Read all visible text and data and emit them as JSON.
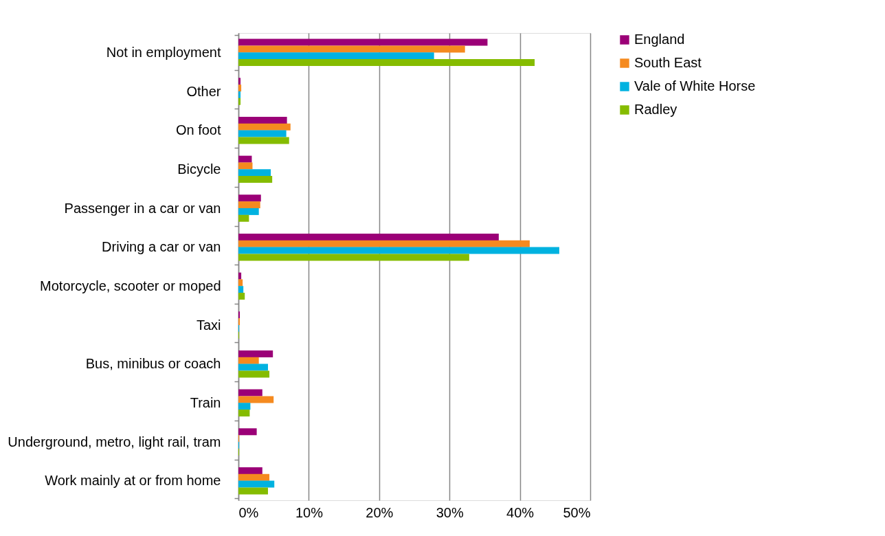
{
  "chart_data": {
    "type": "bar",
    "orientation": "horizontal",
    "categories": [
      "Not in employment",
      "Other",
      "On foot",
      "Bicycle",
      "Passenger in a car or van",
      "Driving a car or van",
      "Motorcycle, scooter or moped",
      "Taxi",
      "Bus, minibus or coach",
      "Train",
      "Underground, metro, light rail, tram",
      "Work mainly at or from home"
    ],
    "series": [
      {
        "name": "England",
        "color": "#9b0077",
        "values": [
          35.4,
          0.3,
          6.9,
          1.9,
          3.2,
          37.0,
          0.4,
          0.2,
          4.9,
          3.4,
          2.6,
          3.4
        ]
      },
      {
        "name": "South East",
        "color": "#f58a1f",
        "values": [
          32.2,
          0.4,
          7.4,
          2.0,
          3.1,
          41.4,
          0.6,
          0.2,
          2.9,
          5.0,
          0.1,
          4.4
        ]
      },
      {
        "name": "Vale of White Horse",
        "color": "#00b2e0",
        "values": [
          27.8,
          0.3,
          6.8,
          4.6,
          2.9,
          45.6,
          0.7,
          0.1,
          4.2,
          1.7,
          0.1,
          5.1
        ]
      },
      {
        "name": "Radley",
        "color": "#85bc00",
        "values": [
          42.1,
          0.3,
          7.2,
          4.8,
          1.5,
          32.8,
          0.9,
          0.1,
          4.4,
          1.6,
          0.1,
          4.2
        ]
      }
    ],
    "xlim": [
      0,
      50
    ],
    "xticks": [
      {
        "value": 0,
        "label": "0%"
      },
      {
        "value": 10,
        "label": "10%"
      },
      {
        "value": 20,
        "label": "20%"
      },
      {
        "value": 30,
        "label": "30%"
      },
      {
        "value": 40,
        "label": "40%"
      },
      {
        "value": 50,
        "label": "50%"
      }
    ],
    "grid": "x",
    "legend": "right"
  }
}
